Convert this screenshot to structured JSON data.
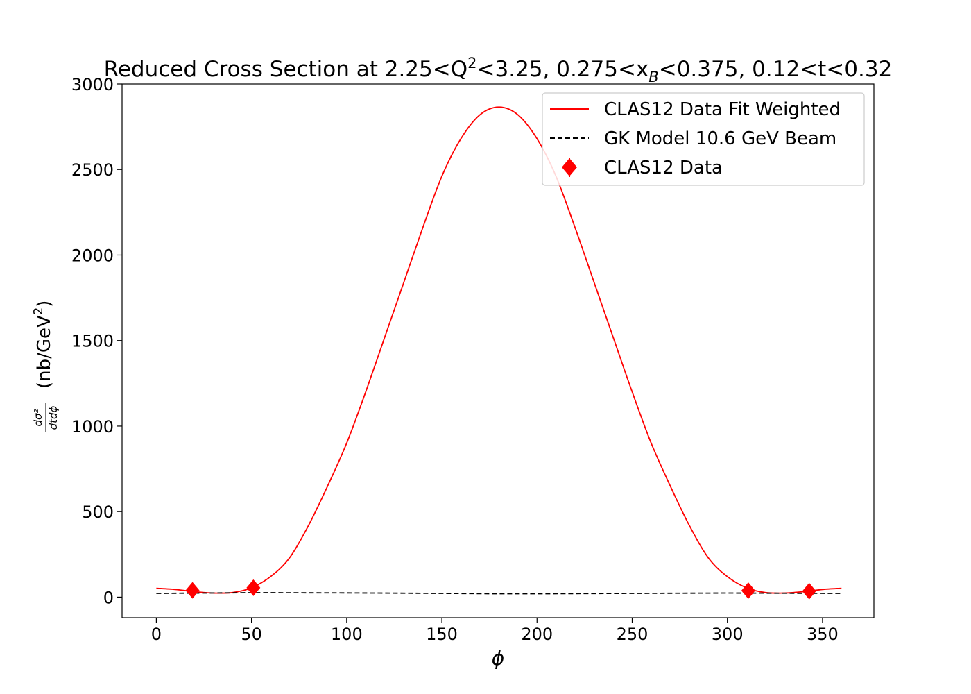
{
  "chart_data": {
    "type": "line",
    "title": {
      "prefix": "Reduced Cross Section at 2.25<Q",
      "sup": "2",
      "mid": "<3.25, 0.275<x",
      "sub": "B",
      "suffix": "<0.375, 0.12<t<0.32"
    },
    "xlabel": "ϕ",
    "ylabel": {
      "frac_num": "dσ²",
      "frac_den": "dtdϕ",
      "unit_prefix": "(nb/GeV",
      "unit_sup": "2",
      "unit_suffix": ")"
    },
    "xlim": [
      -18,
      377
    ],
    "ylim": [
      -120,
      3000
    ],
    "xticks": [
      0,
      50,
      100,
      150,
      200,
      250,
      300,
      350
    ],
    "yticks": [
      0,
      500,
      1000,
      1500,
      2000,
      2500,
      3000
    ],
    "series": [
      {
        "name": "CLAS12 Data Fit Weighted",
        "style": "solid",
        "color": "#ff0000",
        "x": [
          0,
          10,
          20,
          30,
          40,
          50,
          60,
          70,
          80,
          90,
          100,
          110,
          120,
          130,
          140,
          150,
          160,
          170,
          180,
          190,
          200,
          210,
          220,
          230,
          240,
          250,
          260,
          270,
          280,
          290,
          300,
          310,
          320,
          330,
          340,
          350,
          360
        ],
        "y": [
          52,
          45,
          32,
          24,
          27,
          55,
          120,
          230,
          420,
          650,
          900,
          1200,
          1520,
          1840,
          2160,
          2460,
          2680,
          2820,
          2865,
          2820,
          2680,
          2460,
          2160,
          1840,
          1520,
          1200,
          900,
          650,
          420,
          230,
          120,
          55,
          27,
          24,
          32,
          45,
          52
        ]
      },
      {
        "name": "GK Model 10.6 GeV Beam",
        "style": "dashed",
        "color": "#000000",
        "x": [
          0,
          50,
          100,
          150,
          180,
          200,
          250,
          300,
          360
        ],
        "y": [
          22,
          26,
          25,
          22,
          20,
          20,
          22,
          24,
          22
        ]
      }
    ],
    "points": {
      "name": "CLAS12 Data",
      "color": "#ff0000",
      "x": [
        19,
        51,
        311,
        343
      ],
      "y": [
        40,
        55,
        38,
        35
      ]
    },
    "legend_position": "top-right"
  }
}
